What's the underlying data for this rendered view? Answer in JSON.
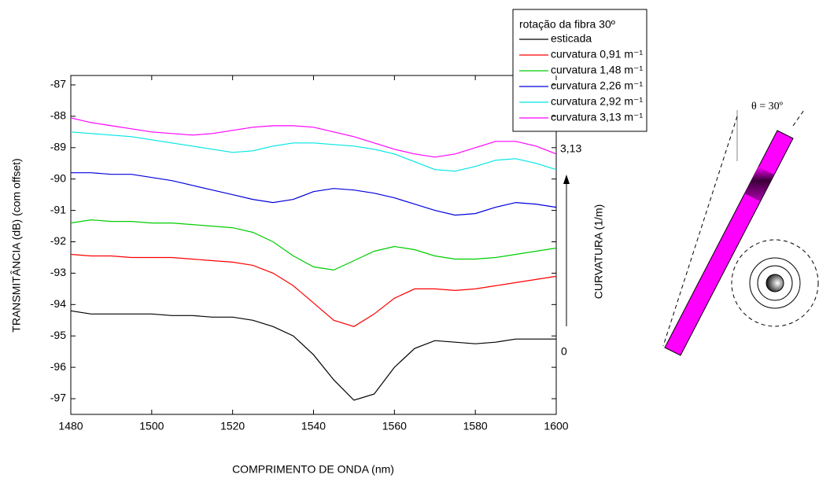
{
  "chart_data": {
    "type": "line",
    "x_label": "COMPRIMENTO DE ONDA (nm)",
    "y_label": "TRANSMITÂNCIA (dB) (com offset)",
    "legend_title": "rotação da fibra 30º",
    "legend_position": "upper right",
    "x": [
      1480,
      1485,
      1490,
      1495,
      1500,
      1505,
      1510,
      1515,
      1520,
      1525,
      1530,
      1535,
      1540,
      1545,
      1550,
      1555,
      1560,
      1565,
      1570,
      1575,
      1580,
      1585,
      1590,
      1595,
      1600
    ],
    "series": [
      {
        "name": "esticada",
        "color": "#000000",
        "values": [
          -94.2,
          -94.3,
          -94.3,
          -94.3,
          -94.3,
          -94.35,
          -94.35,
          -94.4,
          -94.4,
          -94.5,
          -94.7,
          -95.0,
          -95.6,
          -96.4,
          -97.05,
          -96.85,
          -96.0,
          -95.4,
          -95.15,
          -95.2,
          -95.25,
          -95.2,
          -95.1,
          -95.1,
          -95.1
        ]
      },
      {
        "name": "curvatura 0,91 m⁻¹",
        "color": "#ff0000",
        "values": [
          -92.4,
          -92.45,
          -92.45,
          -92.5,
          -92.5,
          -92.5,
          -92.55,
          -92.6,
          -92.65,
          -92.75,
          -93.0,
          -93.4,
          -93.95,
          -94.5,
          -94.7,
          -94.3,
          -93.8,
          -93.5,
          -93.5,
          -93.55,
          -93.5,
          -93.4,
          -93.3,
          -93.2,
          -93.1
        ]
      },
      {
        "name": "curvatura 1,48 m⁻¹",
        "color": "#00cc00",
        "values": [
          -91.4,
          -91.3,
          -91.35,
          -91.35,
          -91.4,
          -91.4,
          -91.45,
          -91.5,
          -91.55,
          -91.7,
          -92.0,
          -92.45,
          -92.8,
          -92.9,
          -92.6,
          -92.3,
          -92.15,
          -92.25,
          -92.45,
          -92.55,
          -92.55,
          -92.5,
          -92.4,
          -92.3,
          -92.2
        ]
      },
      {
        "name": "curvatura 2,26 m⁻¹",
        "color": "#0000dd",
        "values": [
          -89.8,
          -89.8,
          -89.85,
          -89.85,
          -89.95,
          -90.05,
          -90.2,
          -90.35,
          -90.5,
          -90.65,
          -90.75,
          -90.65,
          -90.4,
          -90.3,
          -90.35,
          -90.45,
          -90.6,
          -90.8,
          -91.0,
          -91.15,
          -91.1,
          -90.9,
          -90.75,
          -90.8,
          -90.9
        ]
      },
      {
        "name": "curvatura 2,92 m⁻¹",
        "color": "#00e5e5",
        "values": [
          -88.5,
          -88.55,
          -88.6,
          -88.65,
          -88.75,
          -88.85,
          -88.95,
          -89.05,
          -89.15,
          -89.1,
          -88.95,
          -88.85,
          -88.85,
          -88.9,
          -88.95,
          -89.05,
          -89.2,
          -89.45,
          -89.7,
          -89.75,
          -89.6,
          -89.4,
          -89.35,
          -89.5,
          -89.7
        ]
      },
      {
        "name": "curvatura 3,13 m⁻¹",
        "color": "#ff00ff",
        "values": [
          -88.05,
          -88.2,
          -88.3,
          -88.4,
          -88.5,
          -88.55,
          -88.6,
          -88.55,
          -88.45,
          -88.35,
          -88.3,
          -88.3,
          -88.35,
          -88.5,
          -88.65,
          -88.85,
          -89.05,
          -89.2,
          -89.3,
          -89.2,
          -89.0,
          -88.8,
          -88.8,
          -88.95,
          -89.2
        ]
      }
    ],
    "xlim": [
      1480,
      1600
    ],
    "xticks": [
      1480,
      1500,
      1520,
      1540,
      1560,
      1580,
      1600
    ],
    "ylim": [
      -97.5,
      -86.7
    ],
    "yticks": [
      -87,
      -88,
      -89,
      -90,
      -91,
      -92,
      -93,
      -94,
      -95,
      -96,
      -97
    ],
    "annotations": {
      "top": "3,13",
      "bottom": "0",
      "arrow_label": "CURVATURA (1/m)",
      "angle": "θ = 30º"
    }
  }
}
